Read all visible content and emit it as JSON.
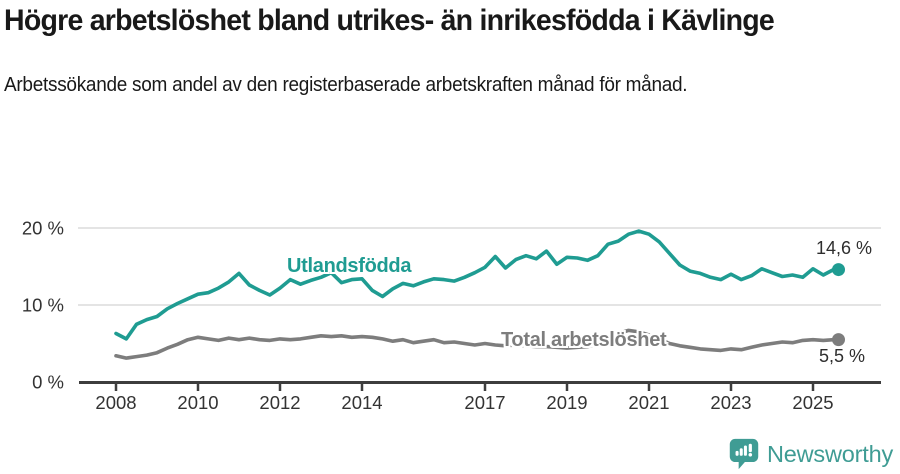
{
  "header": {
    "title": "Högre arbetslöshet bland utrikes- än inrikesfödda i Kävlinge",
    "subtitle": "Arbetssökande som andel av den registerbaserade arbetskraften månad för månad."
  },
  "chart_data": {
    "type": "line",
    "title": "Högre arbetslöshet bland utrikes- än inrikesfödda i Kävlinge",
    "subtitle": "Arbetssökande som andel av den registerbaserade arbetskraften månad för månad.",
    "xlabel": "",
    "ylabel": "",
    "xlim": [
      2007.9,
      2026.4
    ],
    "ylim": [
      0,
      22
    ],
    "grid": "horizontal-light",
    "legend": "inline-series-labels",
    "x_ticks": [
      2008,
      2010,
      2012,
      2014,
      2017,
      2019,
      2021,
      2023,
      2025
    ],
    "x_tick_labels": [
      "2008",
      "2010",
      "2012",
      "2014",
      "2017",
      "2019",
      "2021",
      "2023",
      "2025"
    ],
    "y_ticks": [
      0,
      10,
      20
    ],
    "y_tick_labels": [
      "0 %",
      "10 %",
      "20 %"
    ],
    "x": [
      2008,
      2008.25,
      2008.5,
      2008.75,
      2009,
      2009.25,
      2009.5,
      2009.75,
      2010,
      2010.25,
      2010.5,
      2010.75,
      2011,
      2011.25,
      2011.5,
      2011.75,
      2012,
      2012.25,
      2012.5,
      2012.75,
      2013,
      2013.25,
      2013.5,
      2013.75,
      2014,
      2014.25,
      2014.5,
      2014.75,
      2015,
      2015.25,
      2015.5,
      2015.75,
      2016,
      2016.25,
      2016.5,
      2016.75,
      2017,
      2017.25,
      2017.5,
      2017.75,
      2018,
      2018.25,
      2018.5,
      2018.75,
      2019,
      2019.25,
      2019.5,
      2019.75,
      2020,
      2020.25,
      2020.5,
      2020.75,
      2021,
      2021.25,
      2021.5,
      2021.75,
      2022,
      2022.25,
      2022.5,
      2022.75,
      2023,
      2023.25,
      2023.5,
      2023.75,
      2024,
      2024.25,
      2024.5,
      2024.75,
      2025,
      2025.25,
      2025.5
    ],
    "series": [
      {
        "name": "Utlandsfödda",
        "color": "#1f9c92",
        "end_label": "14,6 %",
        "end_value": 14.6,
        "values": [
          6.3,
          5.6,
          7.5,
          8.1,
          8.5,
          9.5,
          10.2,
          10.8,
          11.4,
          11.6,
          12.2,
          13.0,
          14.1,
          12.6,
          11.9,
          11.3,
          12.2,
          13.3,
          12.7,
          13.2,
          13.6,
          14.2,
          12.9,
          13.3,
          13.4,
          11.9,
          11.1,
          12.1,
          12.8,
          12.5,
          13.0,
          13.4,
          13.3,
          13.1,
          13.6,
          14.2,
          14.9,
          16.3,
          14.8,
          15.9,
          16.4,
          16.0,
          17.0,
          15.3,
          16.2,
          16.1,
          15.8,
          16.4,
          17.9,
          18.3,
          19.2,
          19.6,
          19.2,
          18.2,
          16.7,
          15.2,
          14.4,
          14.1,
          13.6,
          13.3,
          14.0,
          13.3,
          13.8,
          14.7,
          14.2,
          13.7,
          13.9,
          13.6,
          14.7,
          13.9,
          14.6
        ]
      },
      {
        "name": "Total arbetslöshet",
        "color": "#7d7d7d",
        "end_label": "5,5 %",
        "end_value": 5.5,
        "values": [
          3.4,
          3.1,
          3.3,
          3.5,
          3.8,
          4.4,
          4.9,
          5.5,
          5.8,
          5.6,
          5.4,
          5.7,
          5.5,
          5.7,
          5.5,
          5.4,
          5.6,
          5.5,
          5.6,
          5.8,
          6.0,
          5.9,
          6.0,
          5.8,
          5.9,
          5.8,
          5.6,
          5.3,
          5.5,
          5.1,
          5.3,
          5.5,
          5.1,
          5.2,
          5.0,
          4.8,
          5.0,
          4.8,
          4.7,
          4.8,
          4.7,
          4.6,
          4.6,
          4.5,
          4.4,
          4.5,
          4.6,
          4.9,
          5.4,
          6.3,
          6.7,
          6.5,
          6.1,
          5.6,
          5.0,
          4.7,
          4.5,
          4.3,
          4.2,
          4.1,
          4.3,
          4.2,
          4.5,
          4.8,
          5.0,
          5.2,
          5.1,
          5.4,
          5.5,
          5.4,
          5.5
        ]
      }
    ]
  },
  "footer": {
    "brand": "Newsworthy"
  },
  "colors": {
    "series_foreign": "#1f9c92",
    "series_total": "#7d7d7d",
    "axis": "#3d3d3d",
    "tick_text": "#333333",
    "gridline": "#dcdcdc",
    "brand": "#3f9c94",
    "text": "#191919",
    "background": "#ffffff"
  }
}
